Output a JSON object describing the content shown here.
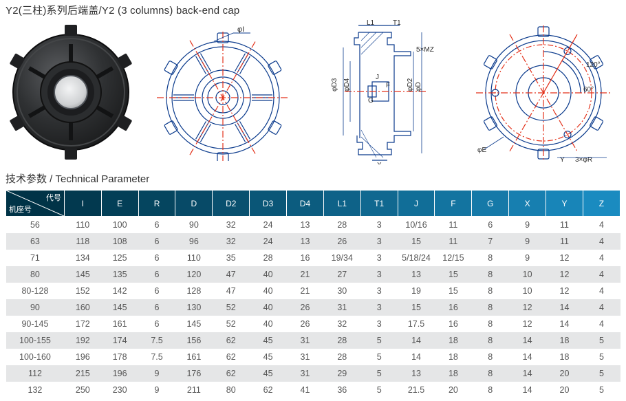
{
  "title": "Y2(三柱)系列后端盖/Y2 (3 columns) back-end cap",
  "subhead": "技术参数 / Technical Parameter",
  "drawing_labels": {
    "phiI": "φI",
    "L1": "L1",
    "T1": "T1",
    "fiveMZ": "5×MZ",
    "phiD3": "φD3",
    "phiD4": "φD4",
    "phiD2": "φD2",
    "phiD": "φD",
    "J": "J",
    "G": "G",
    "F": "F",
    "X": "X",
    "angle120": "120°",
    "angle60": "60°",
    "phiE": "φE",
    "Y": "Y",
    "threePhiR": "3×φR"
  },
  "table": {
    "header_gradient": {
      "from": "#003347",
      "to": "#1a8bc0"
    },
    "header_first": {
      "top_right": "代号",
      "bottom_left": "机座号"
    },
    "columns": [
      "I",
      "E",
      "R",
      "D",
      "D2",
      "D3",
      "D4",
      "L1",
      "T1",
      "J",
      "F",
      "G",
      "X",
      "Y",
      "Z"
    ],
    "col0_width_pct": 9.5,
    "col_width_pct": 6.03,
    "rows": [
      [
        "56",
        "110",
        "100",
        "6",
        "90",
        "32",
        "24",
        "13",
        "28",
        "3",
        "10/16",
        "11",
        "6",
        "9",
        "11",
        "4"
      ],
      [
        "63",
        "118",
        "108",
        "6",
        "96",
        "32",
        "24",
        "13",
        "26",
        "3",
        "15",
        "11",
        "7",
        "9",
        "11",
        "4"
      ],
      [
        "71",
        "134",
        "125",
        "6",
        "110",
        "35",
        "28",
        "16",
        "19/34",
        "3",
        "5/18/24",
        "12/15",
        "8",
        "9",
        "12",
        "4"
      ],
      [
        "80",
        "145",
        "135",
        "6",
        "120",
        "47",
        "40",
        "21",
        "27",
        "3",
        "13",
        "15",
        "8",
        "10",
        "12",
        "4"
      ],
      [
        "80-128",
        "152",
        "142",
        "6",
        "128",
        "47",
        "40",
        "21",
        "30",
        "3",
        "19",
        "15",
        "8",
        "10",
        "12",
        "4"
      ],
      [
        "90",
        "160",
        "145",
        "6",
        "130",
        "52",
        "40",
        "26",
        "31",
        "3",
        "15",
        "16",
        "8",
        "12",
        "14",
        "4"
      ],
      [
        "90-145",
        "172",
        "161",
        "6",
        "145",
        "52",
        "40",
        "26",
        "32",
        "3",
        "17.5",
        "16",
        "8",
        "12",
        "14",
        "4"
      ],
      [
        "100-155",
        "192",
        "174",
        "7.5",
        "156",
        "62",
        "45",
        "31",
        "28",
        "5",
        "14",
        "18",
        "8",
        "14",
        "18",
        "5"
      ],
      [
        "100-160",
        "196",
        "178",
        "7.5",
        "161",
        "62",
        "45",
        "31",
        "28",
        "5",
        "14",
        "18",
        "8",
        "14",
        "18",
        "5"
      ],
      [
        "112",
        "215",
        "196",
        "9",
        "176",
        "62",
        "45",
        "31",
        "29",
        "5",
        "13",
        "18",
        "8",
        "14",
        "20",
        "5"
      ],
      [
        "132",
        "250",
        "230",
        "9",
        "211",
        "80",
        "62",
        "41",
        "36",
        "5",
        "21.5",
        "20",
        "8",
        "14",
        "20",
        "5"
      ]
    ]
  },
  "colors": {
    "stroke_blue": "#0a3a8c",
    "centerline_red": "#e3311a",
    "text_dark": "#2a2a2a",
    "row_alt": "#e5e6e7"
  }
}
